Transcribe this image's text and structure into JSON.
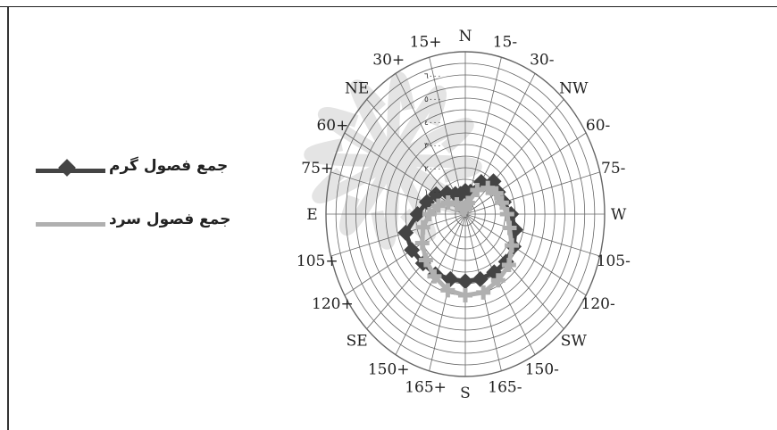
{
  "chart_data": {
    "type": "radar",
    "title": "",
    "directions": [
      "N",
      "15-",
      "30-",
      "NW",
      "60-",
      "75-",
      "W",
      "105-",
      "120-",
      "SW",
      "150-",
      "165-",
      "S",
      "165+",
      "150+",
      "SE",
      "120+",
      "105+",
      "E",
      "75+",
      "60+",
      "NE",
      "30+",
      "15+"
    ],
    "radial_ticks": [
      "١٠٠٠",
      "٢٠٠٠",
      "٣٠٠٠",
      "٤٠٠٠",
      "٥٠٠٠",
      "٦٠٠٠"
    ],
    "rmax": 7000,
    "grid": true,
    "legend_position": "left",
    "series": [
      {
        "name": "جمع فصول گرم",
        "color": "#444444",
        "marker": "diamond",
        "values": [
          1000,
          1000,
          1600,
          2000,
          1900,
          2000,
          2300,
          2600,
          2800,
          2900,
          2900,
          2900,
          2900,
          2900,
          3000,
          3000,
          3100,
          3100,
          2400,
          2000,
          1700,
          1300,
          1000,
          900
        ]
      },
      {
        "name": "جمع فصول سرد",
        "color": "#b0b0b0",
        "marker": "plus",
        "values": [
          300,
          500,
          1200,
          1600,
          1800,
          1900,
          2100,
          2300,
          2700,
          3100,
          3300,
          3500,
          3500,
          3400,
          3100,
          2800,
          2500,
          2200,
          1800,
          1400,
          1000,
          600,
          300,
          200
        ]
      }
    ]
  }
}
